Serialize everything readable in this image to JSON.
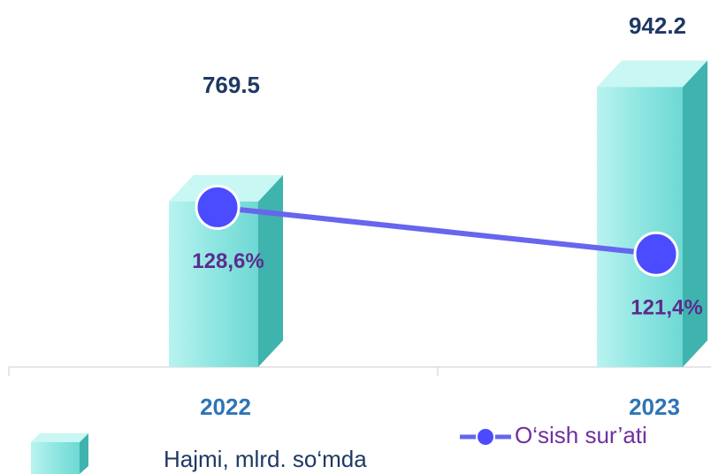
{
  "chart_data": {
    "type": "bar",
    "categories": [
      "2022",
      "2023"
    ],
    "series": [
      {
        "name": "Hajmi, mlrd. so‘mda",
        "type": "bar",
        "color": "#7fe3df",
        "values": [
          769.5,
          942.2
        ]
      },
      {
        "name": "O‘sish sur’ati",
        "type": "line",
        "axis": "y2",
        "color": "#4b4bff",
        "values": [
          128.6,
          121.4
        ],
        "value_labels": [
          "128,6%",
          "121,4%"
        ]
      }
    ],
    "ylim": [
      520,
      980
    ],
    "y2lim": [
      104,
      151
    ]
  }
}
